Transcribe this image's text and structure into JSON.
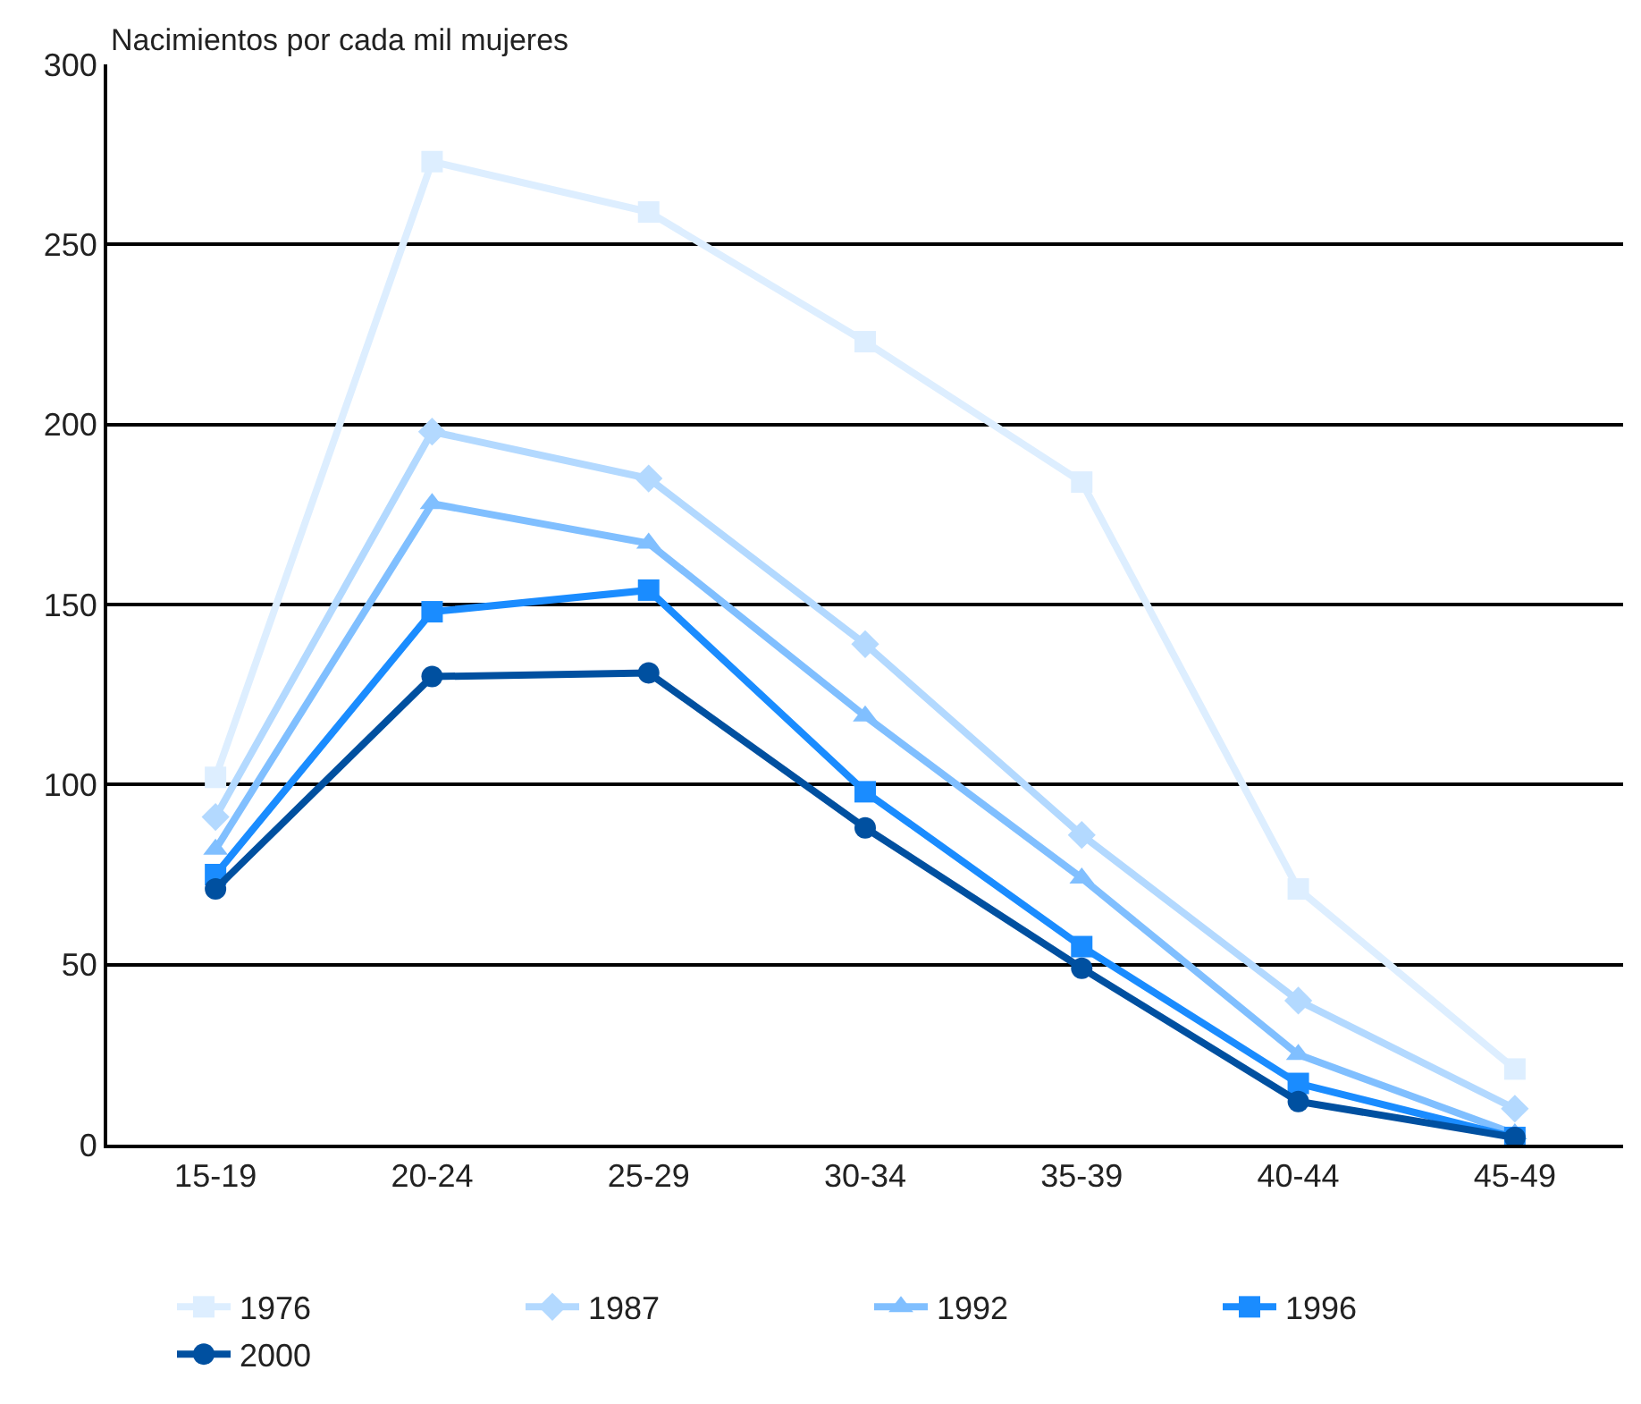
{
  "chart_data": {
    "type": "line",
    "ylabel": "Nacimientos por cada mil mujeres",
    "categories": [
      "15-19",
      "20-24",
      "25-29",
      "30-34",
      "35-39",
      "40-44",
      "45-49"
    ],
    "series": [
      {
        "name": "1976",
        "color": "#ddeeff",
        "marker": "square",
        "values": [
          102,
          273,
          259,
          223,
          184,
          71,
          21
        ]
      },
      {
        "name": "1987",
        "color": "#b3d9ff",
        "marker": "diamond",
        "values": [
          91,
          198,
          185,
          139,
          86,
          40,
          10
        ]
      },
      {
        "name": "1992",
        "color": "#80bfff",
        "marker": "triangle",
        "values": [
          82,
          178,
          167,
          119,
          74,
          25,
          3
        ]
      },
      {
        "name": "1996",
        "color": "#1a8cff",
        "marker": "square",
        "values": [
          75,
          148,
          154,
          98,
          55,
          17,
          2
        ]
      },
      {
        "name": "2000",
        "color": "#0050a0",
        "marker": "circle",
        "values": [
          71,
          130,
          131,
          88,
          49,
          12,
          2
        ]
      }
    ],
    "ylim": [
      0,
      300
    ],
    "yticks": [
      0,
      50,
      100,
      150,
      200,
      250,
      300
    ],
    "grid": "y",
    "legend": "bottom",
    "line_style": "solid"
  }
}
